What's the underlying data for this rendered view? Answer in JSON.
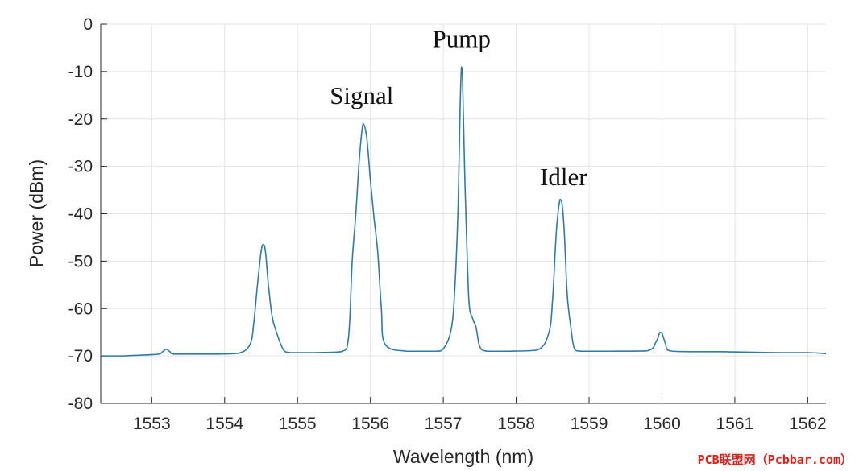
{
  "chart_data": {
    "type": "line",
    "title": "",
    "xlabel": "Wavelength (nm)",
    "ylabel": "Power (dBm)",
    "xlim": [
      1552.3,
      1562.25
    ],
    "ylim": [
      -80,
      0
    ],
    "xticks": [
      1553,
      1554,
      1555,
      1556,
      1557,
      1558,
      1559,
      1560,
      1561,
      1562
    ],
    "yticks": [
      0,
      -10,
      -20,
      -30,
      -40,
      -50,
      -60,
      -70,
      -80
    ],
    "grid": true,
    "line_color": "#2f7ba6",
    "series": [
      {
        "x": [
          1552.3,
          1552.6,
          1552.9,
          1553.1,
          1553.15,
          1553.2,
          1553.25,
          1553.3,
          1553.6,
          1553.9,
          1554.2,
          1554.35,
          1554.4,
          1554.45,
          1554.5,
          1554.53,
          1554.56,
          1554.6,
          1554.65,
          1554.7,
          1554.8,
          1554.9,
          1555.2,
          1555.6,
          1555.7,
          1555.75,
          1555.8,
          1555.85,
          1555.9,
          1555.95,
          1556.0,
          1556.05,
          1556.1,
          1556.15,
          1556.2,
          1556.5,
          1556.9,
          1557.0,
          1557.1,
          1557.15,
          1557.2,
          1557.25,
          1557.3,
          1557.35,
          1557.4,
          1557.45,
          1557.5,
          1557.6,
          1557.9,
          1558.3,
          1558.45,
          1558.5,
          1558.55,
          1558.6,
          1558.63,
          1558.66,
          1558.7,
          1558.75,
          1558.8,
          1558.9,
          1559.3,
          1559.8,
          1559.92,
          1559.97,
          1560.0,
          1560.05,
          1560.1,
          1560.4,
          1560.8,
          1561.2,
          1561.6,
          1562.0,
          1562.25
        ],
        "y": [
          -70,
          -70,
          -69.8,
          -69.6,
          -69.1,
          -68.6,
          -69.1,
          -69.6,
          -69.6,
          -69.6,
          -69.4,
          -67.5,
          -63,
          -55,
          -48,
          -46.5,
          -48,
          -55,
          -61.5,
          -64.5,
          -68.5,
          -69.3,
          -69.3,
          -69.1,
          -66,
          -50,
          -40,
          -28,
          -21,
          -24,
          -33,
          -41,
          -48,
          -60,
          -67.5,
          -69,
          -69,
          -68.5,
          -65,
          -58,
          -40,
          -9,
          -35,
          -58,
          -62,
          -64,
          -68,
          -69,
          -69,
          -68.7,
          -65,
          -58,
          -44,
          -37,
          -38,
          -44,
          -57,
          -64,
          -68.5,
          -69,
          -69,
          -68.9,
          -67,
          -65,
          -65.2,
          -67.5,
          -68.9,
          -69.1,
          -69.1,
          -69.2,
          -69.3,
          -69.3,
          -69.5
        ]
      }
    ],
    "annotations": [
      {
        "text": "Signal",
        "x": 1555.88,
        "y": -16.8
      },
      {
        "text": "Pump",
        "x": 1557.25,
        "y": -4.8
      },
      {
        "text": "Idler",
        "x": 1558.65,
        "y": -34
      }
    ]
  },
  "watermark": "PCB联盟网（Pcbbar.com）"
}
